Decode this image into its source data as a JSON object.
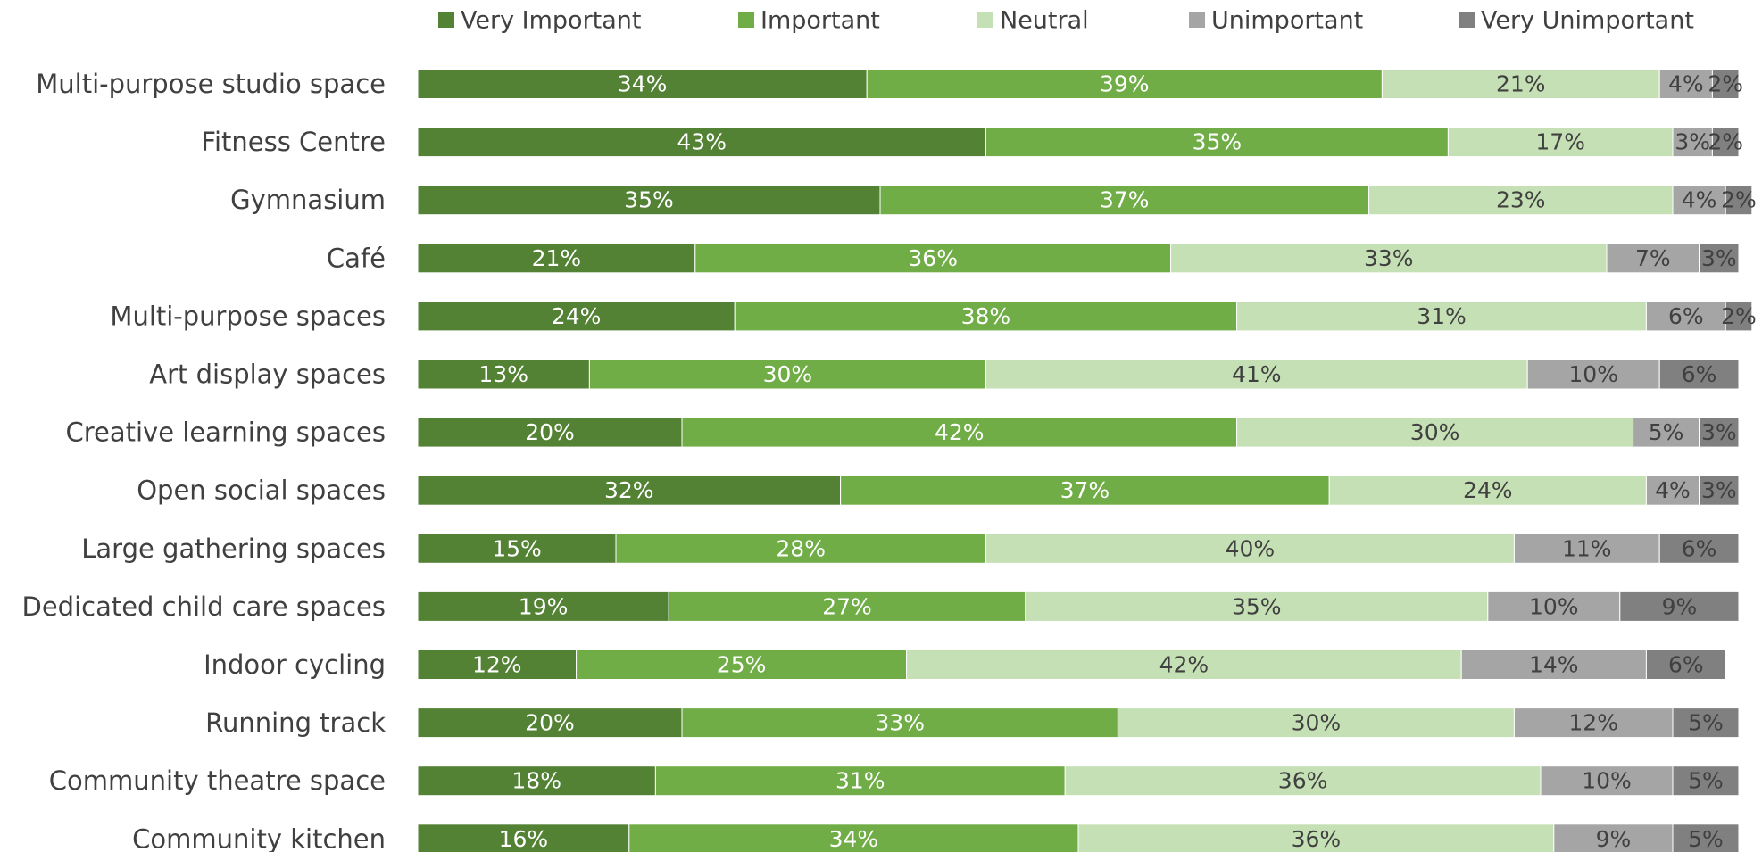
{
  "chart_data": {
    "type": "stacked_bar_horizontal",
    "categories": [
      "Multi-purpose studio space",
      "Fitness Centre",
      "Gymnasium",
      "Café",
      "Multi-purpose spaces",
      "Art display spaces",
      "Creative learning spaces",
      "Open social spaces",
      "Large gathering spaces",
      "Dedicated child care spaces",
      "Indoor cycling",
      "Running track",
      "Community theatre space",
      "Community kitchen"
    ],
    "series": [
      {
        "name": "Very Important",
        "color": "#548235",
        "values": [
          34,
          43,
          35,
          21,
          24,
          13,
          20,
          32,
          15,
          19,
          12,
          20,
          18,
          16
        ],
        "value_labels": [
          "34%",
          "43%",
          "35%",
          "21%",
          "24%",
          "13%",
          "20%",
          "32%",
          "15%",
          "19%",
          "12%",
          "20%",
          "18%",
          "16%"
        ]
      },
      {
        "name": "Important",
        "color": "#70ad47",
        "values": [
          39,
          35,
          37,
          36,
          38,
          30,
          42,
          37,
          28,
          27,
          25,
          33,
          31,
          34
        ],
        "value_labels": [
          "39%",
          "35%",
          "37%",
          "36%",
          "38%",
          "30%",
          "42%",
          "37%",
          "28%",
          "27%",
          "25%",
          "33%",
          "31%",
          "34%"
        ]
      },
      {
        "name": "Neutral",
        "color": "#c5e0b4",
        "values": [
          21,
          17,
          23,
          33,
          31,
          41,
          30,
          24,
          40,
          35,
          42,
          30,
          36,
          36
        ],
        "value_labels": [
          "21%",
          "17%",
          "23%",
          "33%",
          "31%",
          "41%",
          "30%",
          "24%",
          "40%",
          "35%",
          "42%",
          "30%",
          "36%",
          "36%"
        ]
      },
      {
        "name": "Unimportant",
        "color": "#a5a5a5",
        "values": [
          4,
          3,
          4,
          7,
          6,
          10,
          5,
          4,
          11,
          10,
          14,
          12,
          10,
          9
        ],
        "value_labels": [
          "4%",
          "3%",
          "4%",
          "7%",
          "6%",
          "10%",
          "5%",
          "4%",
          "11%",
          "10%",
          "14%",
          "12%",
          "10%",
          "9%"
        ]
      },
      {
        "name": "Very Unimportant",
        "color": "#808080",
        "values": [
          2,
          2,
          2,
          3,
          2,
          6,
          3,
          3,
          6,
          9,
          6,
          5,
          5,
          5
        ],
        "value_labels": [
          "2%",
          "2%",
          "2%",
          "3%",
          "2%",
          "6%",
          "3%",
          "3%",
          "6%",
          "9%",
          "6%",
          "5%",
          "5%",
          "5%"
        ]
      }
    ]
  }
}
